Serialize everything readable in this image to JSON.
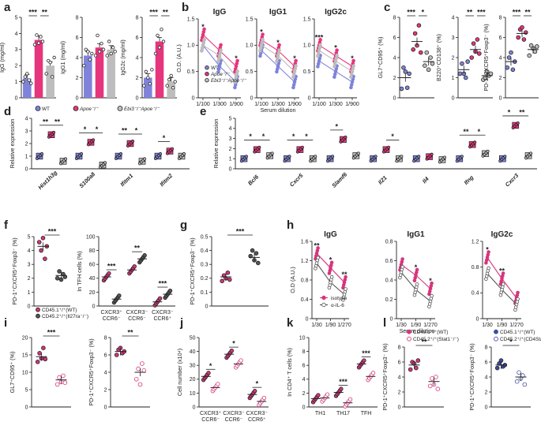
{
  "colors": {
    "wt": "#7f83d9",
    "apoe": "#e6357c",
    "ebi3": "#bdbdbd",
    "pink": "#d6357c",
    "dark": "#555555",
    "navy": "#3e4ca3",
    "ink": "#222222"
  },
  "panel_labels": [
    "a",
    "b",
    "c",
    "d",
    "e",
    "f",
    "g",
    "h",
    "i",
    "j",
    "k",
    "l"
  ],
  "legend_a": [
    "WT",
    "Apoe⁻/⁻",
    "Ebi3⁻/⁻Apoe⁻/⁻"
  ],
  "legend_b": [
    "WT",
    "Apoe⁻/⁻",
    "Ebi3⁻/⁻Apoe⁻/⁻"
  ],
  "legend_f": [
    "CD45.1⁺/⁺(WT)",
    "CD45.2⁺/⁺(Il27ra⁻/⁻)"
  ],
  "legend_h": [
    "isotype",
    "α-IL-6"
  ],
  "legend_l": [
    "CD45.1⁺/⁺(WT)",
    "CD45.2⁺/⁺(Stat1⁻/⁻)",
    "CD45.1⁺/⁺(WT)",
    "CD45.2⁺/⁺(CD4Stat3)"
  ],
  "chart_data": [
    {
      "panel": "a",
      "type": "bar",
      "ylabel": "IgG (mg/ml)",
      "ylim": [
        0,
        5
      ],
      "yticks": [
        "0",
        "1",
        "2",
        "3",
        "4",
        "5"
      ],
      "groups": [
        "WT",
        "Apoe-/-",
        "Ebi3-/-Apoe-/-"
      ],
      "values": [
        1.2,
        3.6,
        2.0
      ],
      "points": [
        [
          1.0,
          1.3,
          1.5,
          1.1,
          0.9
        ],
        [
          3.3,
          3.9,
          3.4,
          3.8,
          3.5
        ],
        [
          1.5,
          2.3,
          2.2,
          1.3,
          2.5
        ]
      ],
      "sig": [
        {
          "from": 0,
          "to": 1,
          "label": "***"
        },
        {
          "from": 1,
          "to": 2,
          "label": "**"
        }
      ]
    },
    {
      "panel": "a",
      "type": "bar",
      "ylabel": "IgG1 (mg/ml)",
      "ylim": [
        0,
        8
      ],
      "yticks": [
        "0",
        "2",
        "4",
        "6",
        "8"
      ],
      "groups": [
        "WT",
        "Apoe-/-",
        "Ebi3-/-Apoe-/-"
      ],
      "values": [
        4.2,
        5.0,
        4.8
      ],
      "points": [
        [
          3.2,
          4.8,
          4.6,
          3.8,
          4.4
        ],
        [
          4.2,
          6.2,
          4.6,
          5.4,
          4.8
        ],
        [
          4.2,
          5.6,
          4.4,
          5.0,
          4.6
        ]
      ],
      "sig": []
    },
    {
      "panel": "a",
      "type": "bar",
      "ylabel": "IgG2c (mg/ml)",
      "ylim": [
        0,
        8
      ],
      "yticks": [
        "0",
        "2",
        "4",
        "6",
        "8"
      ],
      "groups": [
        "WT",
        "Apoe-/-",
        "Ebi3-/-Apoe-/-"
      ],
      "values": [
        2.0,
        5.6,
        1.6
      ],
      "points": [
        [
          1.2,
          2.6,
          2.0,
          1.4,
          2.8
        ],
        [
          4.4,
          6.2,
          5.0,
          6.8,
          5.6
        ],
        [
          1.2,
          1.8,
          2.2,
          1.0,
          1.6
        ]
      ],
      "sig": [
        {
          "from": 0,
          "to": 1,
          "label": "***"
        },
        {
          "from": 1,
          "to": 2,
          "label": "**"
        }
      ]
    },
    {
      "panel": "b",
      "type": "line",
      "title": "IgG",
      "ylabel": "O.D. (A.U.)",
      "ylim": [
        0,
        1.5
      ],
      "yticks": [
        "0",
        "0.5",
        "1.0",
        "1.5"
      ],
      "categories": [
        "1/100",
        "1/300",
        "1/900"
      ],
      "series": [
        {
          "name": "WT",
          "values": [
            1.0,
            0.6,
            0.3
          ]
        },
        {
          "name": "Apoe-/-",
          "values": [
            1.2,
            0.9,
            0.6
          ]
        },
        {
          "name": "Ebi3-/-Apoe-/-",
          "values": [
            1.0,
            0.8,
            0.4
          ]
        }
      ],
      "sig": [
        "*",
        "",
        "*"
      ]
    },
    {
      "panel": "b",
      "type": "line",
      "title": "IgG1",
      "ylim": [
        0,
        1.5
      ],
      "yticks": [
        "0",
        "0.5",
        "1.0",
        "1.5"
      ],
      "categories": [
        "1/100",
        "1/300",
        "1/900"
      ],
      "series": [
        {
          "name": "WT",
          "values": [
            0.9,
            0.6,
            0.3
          ]
        },
        {
          "name": "Apoe-/-",
          "values": [
            1.1,
            0.9,
            0.6
          ]
        },
        {
          "name": "Ebi3-/-Apoe-/-",
          "values": [
            1.0,
            0.8,
            0.5
          ]
        }
      ],
      "sig": [
        "*",
        "*",
        "*"
      ]
    },
    {
      "panel": "b",
      "type": "line",
      "title": "IgG2c",
      "ylim": [
        0,
        1.5
      ],
      "yticks": [
        "0",
        "0.5",
        "1.0",
        "1.5"
      ],
      "categories": [
        "1/100",
        "1/300",
        "1/900"
      ],
      "series": [
        {
          "name": "WT",
          "values": [
            0.7,
            0.5,
            0.3
          ]
        },
        {
          "name": "Apoe-/-",
          "values": [
            1.0,
            0.8,
            0.6
          ]
        },
        {
          "name": "Ebi3-/-Apoe-/-",
          "values": [
            0.9,
            0.7,
            0.5
          ]
        }
      ],
      "sig": [
        "***",
        "*",
        "*"
      ]
    },
    {
      "panel": "b",
      "type": "label",
      "xlabel": "Serum dilution"
    },
    {
      "panel": "c",
      "type": "scatter",
      "ylabel": "GL7⁺CD95⁺ (%)",
      "ylim": [
        0,
        8
      ],
      "yticks": [
        "0",
        "2",
        "4",
        "6",
        "8"
      ],
      "groups": [
        "WT",
        "Apoe-/-",
        "Ebi3-/-Apoe-/-"
      ],
      "means": [
        2.0,
        5.6,
        3.6
      ],
      "points": [
        [
          0.9,
          3.0,
          2.6,
          1.0,
          2.4
        ],
        [
          4.8,
          6.4,
          5.2,
          7.2,
          4.5
        ],
        [
          3.2,
          4.5,
          2.8,
          4.0,
          3.4
        ]
      ],
      "sig": [
        {
          "from": 0,
          "to": 1,
          "label": "***"
        },
        {
          "from": 1,
          "to": 2,
          "label": "*"
        }
      ]
    },
    {
      "panel": "c",
      "type": "scatter",
      "ylabel": "B220⁺CD138⁺ (%)",
      "ylim": [
        0,
        4
      ],
      "yticks": [
        "0",
        "1",
        "2",
        "3",
        "4"
      ],
      "groups": [
        "WT",
        "Apoe-/-",
        "Ebi3-/-Apoe-/-"
      ],
      "means": [
        1.4,
        2.4,
        1.1
      ],
      "points": [
        [
          1.2,
          1.7,
          1.2,
          1.0,
          1.8
        ],
        [
          2.0,
          2.7,
          2.3,
          2.9,
          2.2
        ],
        [
          0.9,
          1.0,
          1.3,
          1.1,
          1.2
        ]
      ],
      "sig": [
        {
          "from": 0,
          "to": 1,
          "label": "**"
        },
        {
          "from": 1,
          "to": 2,
          "label": "***"
        }
      ]
    },
    {
      "panel": "c",
      "type": "scatter",
      "ylabel": "PD-1⁺CXCR5⁺Foxp3⁻ (%)",
      "ylim": [
        0,
        8
      ],
      "yticks": [
        "0",
        "2",
        "4",
        "6",
        "8"
      ],
      "groups": [
        "WT",
        "Apoe-/-",
        "Ebi3-/-Apoe-/-"
      ],
      "means": [
        3.6,
        6.4,
        4.8
      ],
      "points": [
        [
          3.0,
          4.0,
          4.5,
          2.8,
          3.6
        ],
        [
          6.0,
          6.8,
          7.0,
          5.8,
          6.5
        ],
        [
          4.2,
          5.2,
          4.9,
          4.6,
          5.1
        ]
      ],
      "sig": [
        {
          "from": 0,
          "to": 1,
          "label": "***"
        },
        {
          "from": 1,
          "to": 2,
          "label": "**"
        }
      ]
    },
    {
      "panel": "d",
      "type": "box",
      "ylabel": "Relative expression",
      "ylim": [
        0,
        4
      ],
      "yticks": [
        "0",
        "1",
        "2",
        "3",
        "4"
      ],
      "genes": [
        "Hist1h3g",
        "S100a8",
        "Ifitm1",
        "Ifitm2"
      ],
      "medians": [
        [
          1.0,
          2.7,
          0.6
        ],
        [
          1.0,
          2.1,
          0.3
        ],
        [
          1.0,
          2.0,
          0.6
        ],
        [
          1.0,
          1.4,
          1.0
        ]
      ],
      "sig": [
        [
          "**",
          "**"
        ],
        [
          "*",
          "*"
        ],
        [
          "**",
          "*"
        ],
        [
          "*",
          ""
        ]
      ]
    },
    {
      "panel": "e",
      "type": "box",
      "ylabel": "Relative expression",
      "ylim": [
        0,
        5
      ],
      "yticks": [
        "0",
        "1",
        "2",
        "3",
        "4",
        "5"
      ],
      "genes": [
        "Bcl6",
        "Cxcr5",
        "Slamf6",
        "Il21",
        "Il4",
        "Ifng",
        "Cxcr3"
      ],
      "medians": [
        [
          1.0,
          1.9,
          1.3
        ],
        [
          1.0,
          1.9,
          1.0
        ],
        [
          1.0,
          2.9,
          1.3
        ],
        [
          1.0,
          1.9,
          1.0
        ],
        [
          1.0,
          1.2,
          0.9
        ],
        [
          1.0,
          2.4,
          1.5
        ],
        [
          1.0,
          4.3,
          1.3
        ]
      ],
      "sig": [
        [
          "*",
          "*"
        ],
        [
          "*",
          "*"
        ],
        [
          "*",
          ""
        ],
        [
          "",
          "*"
        ],
        [
          "",
          ""
        ],
        [
          "**",
          "*"
        ],
        [
          "*",
          "**"
        ]
      ]
    },
    {
      "panel": "f",
      "type": "scatter",
      "ylabel": "PD-1⁺CXCR5⁺Foxp3⁻ (%)",
      "ylim": [
        0,
        5
      ],
      "yticks": [
        "0",
        "1",
        "2",
        "3",
        "4",
        "5"
      ],
      "groups": [
        "CD45.1+/+(WT)",
        "CD45.2+/+(Il27ra-/-)"
      ],
      "means": [
        4.3,
        2.2
      ],
      "points": [
        [
          4.6,
          4.0,
          4.9,
          3.4,
          4.3
        ],
        [
          2.0,
          2.5,
          1.9,
          2.3,
          2.1
        ]
      ],
      "sig": [
        {
          "from": 0,
          "to": 1,
          "label": "***"
        }
      ]
    },
    {
      "panel": "f",
      "type": "scatter",
      "ylabel": "In TFH cells (%)",
      "ylim": [
        0,
        100
      ],
      "yticks": [
        "0",
        "20",
        "40",
        "60",
        "80",
        "100"
      ],
      "categories": [
        "CXCR3⁺ CCR6⁻",
        "CXCR3⁻ CCR6⁻",
        "CXCR3⁻ CCR6⁺"
      ],
      "means": [
        [
          42,
          10
        ],
        [
          52,
          68
        ],
        [
          6,
          17
        ]
      ],
      "sig": [
        "***",
        "**",
        "***"
      ]
    },
    {
      "panel": "g",
      "type": "scatter",
      "ylabel": "PD-1⁺CXCR5⁺Foxp3⁻ (%)",
      "ylim": [
        0,
        0.5
      ],
      "yticks": [
        "0",
        "0.1",
        "0.2",
        "0.3",
        "0.4",
        "0.5"
      ],
      "groups": [
        "isotype",
        "α-IL-6"
      ],
      "means": [
        0.21,
        0.35
      ],
      "points": [
        [
          0.18,
          0.22,
          0.2,
          0.24,
          0.19
        ],
        [
          0.36,
          0.4,
          0.33,
          0.38,
          0.31
        ]
      ],
      "sig": [
        {
          "from": 0,
          "to": 1,
          "label": "***"
        }
      ]
    },
    {
      "panel": "h",
      "type": "line",
      "title": "IgG",
      "ylabel": "O.D (A.U.)",
      "ylim": [
        0,
        1.6
      ],
      "yticks": [
        "0",
        "0.4",
        "0.8",
        "1.2",
        "1.6"
      ],
      "categories": [
        "1/30",
        "1/90",
        "1/270"
      ],
      "series": [
        {
          "name": "isotype",
          "values": [
            1.35,
            1.05,
            0.75
          ]
        },
        {
          "name": "α-IL-6",
          "values": [
            1.15,
            0.75,
            0.5
          ]
        }
      ],
      "sig": [
        "**",
        "*",
        "**"
      ]
    },
    {
      "panel": "h",
      "type": "line",
      "title": "IgG1",
      "ylim": [
        0,
        0.8
      ],
      "yticks": [
        "0",
        "0.2",
        "0.4",
        "0.6",
        "0.8"
      ],
      "categories": [
        "1/30",
        "1/90",
        "1/270"
      ],
      "series": [
        {
          "name": "isotype",
          "values": [
            0.56,
            0.45,
            0.31
          ]
        },
        {
          "name": "α-IL-6",
          "values": [
            0.48,
            0.3,
            0.18
          ]
        }
      ],
      "sig": [
        "",
        "*",
        "*"
      ]
    },
    {
      "panel": "h",
      "type": "line",
      "title": "IgG2c",
      "ylim": [
        0,
        1.2
      ],
      "yticks": [
        "0",
        "0.4",
        "0.8",
        "1.2"
      ],
      "categories": [
        "1/30",
        "1/90",
        "1/270"
      ],
      "series": [
        {
          "name": "isotype",
          "values": [
            0.95,
            0.62,
            0.32
          ]
        },
        {
          "name": "α-IL-6",
          "values": [
            0.7,
            0.45,
            0.22
          ]
        }
      ],
      "sig": [
        "*",
        "**",
        ""
      ]
    },
    {
      "panel": "h",
      "type": "label",
      "xlabel": "Serum dilution"
    },
    {
      "panel": "i",
      "type": "scatter",
      "ylabel": "GL7⁺CD95⁺ (%)",
      "ylim": [
        0,
        20
      ],
      "yticks": [
        "0",
        "5",
        "10",
        "15",
        "20"
      ],
      "groups": [
        "CD45.1+/+(WT)",
        "CD45.2+/+(Stat1-/-)"
      ],
      "means": [
        14.5,
        7.8
      ],
      "points": [
        [
          13,
          15.5,
          14,
          17,
          13.8
        ],
        [
          6.5,
          8.5,
          7.2,
          9.0,
          7.0
        ]
      ],
      "sig": [
        {
          "from": 0,
          "to": 1,
          "label": "***"
        }
      ]
    },
    {
      "panel": "i",
      "type": "scatter",
      "ylabel": "PD-1⁺CXCR5⁺Foxp3⁻ (%)",
      "ylim": [
        0,
        8
      ],
      "yticks": [
        "0",
        "2",
        "4",
        "6",
        "8"
      ],
      "groups": [
        "CD45.1+/+(WT)",
        "CD45.2+/+(Stat1-/-)"
      ],
      "means": [
        6.4,
        4.0
      ],
      "points": [
        [
          6.0,
          6.6,
          6.8,
          6.2,
          6.4
        ],
        [
          3.2,
          4.4,
          2.6,
          5.0,
          4.2
        ]
      ],
      "sig": [
        {
          "from": 0,
          "to": 1,
          "label": "**"
        }
      ]
    },
    {
      "panel": "j",
      "type": "scatter",
      "ylabel": "Cell number (x10⁴)",
      "ylim": [
        0,
        50
      ],
      "yticks": [
        "0",
        "10",
        "20",
        "30",
        "40",
        "50"
      ],
      "categories": [
        "CXCR3⁺ CCR6⁻",
        "CXCR3⁻ CCR6⁻",
        "CXCR3⁻ CCR6⁺"
      ],
      "means": [
        [
          22,
          14
        ],
        [
          38,
          31
        ],
        [
          9,
          4
        ]
      ],
      "sig": [
        "*",
        "*",
        "*"
      ]
    },
    {
      "panel": "k",
      "type": "scatter",
      "ylabel": "In CD4⁺ T cells (%)",
      "ylim": [
        0,
        10
      ],
      "yticks": [
        "0",
        "2",
        "4",
        "6",
        "8",
        "10"
      ],
      "categories": [
        "TH1",
        "TH17",
        "TFH"
      ],
      "means": [
        [
          1.2,
          1.3
        ],
        [
          2.1,
          0.6
        ],
        [
          6.2,
          4.4
        ]
      ],
      "sig": [
        "",
        "***",
        "***"
      ]
    },
    {
      "panel": "l",
      "type": "scatter",
      "ylabel": "PD-1⁺CXCR5⁺Foxp3⁻ (%)",
      "ylim": [
        0,
        8
      ],
      "yticks": [
        "0",
        "2",
        "4",
        "6",
        "8"
      ],
      "groups": [
        "CD45.1+/+(WT)",
        "CD45.2+/+(Stat1-/-)"
      ],
      "means": [
        5.6,
        3.4
      ],
      "points": [
        [
          5.0,
          6.0,
          5.8,
          5.2,
          6.2
        ],
        [
          2.8,
          3.8,
          3.0,
          4.0,
          2.4
        ]
      ],
      "sig": [
        {
          "from": 0,
          "to": 1,
          "label": "**"
        }
      ]
    },
    {
      "panel": "l",
      "type": "scatter",
      "ylabel": "PD-1⁺CXCR5⁺Foxp3⁻ (%)",
      "ylim": [
        0,
        8
      ],
      "yticks": [
        "0",
        "2",
        "4",
        "6",
        "8"
      ],
      "groups": [
        "CD45.1+/+(WT)",
        "CD45.2+/+(CD4Stat3)"
      ],
      "means": [
        5.6,
        4.0
      ],
      "points": [
        [
          5.2,
          5.8,
          6.2,
          5.4,
          5.6
        ],
        [
          3.4,
          4.6,
          3.8,
          4.2,
          3.0
        ]
      ],
      "sig": [
        {
          "from": 0,
          "to": 1,
          "label": "*"
        }
      ]
    }
  ]
}
